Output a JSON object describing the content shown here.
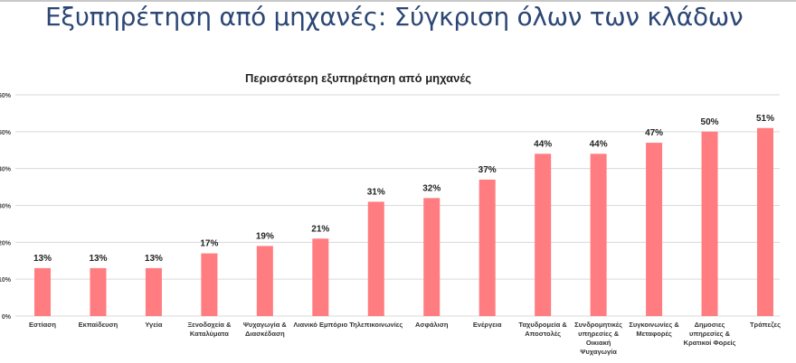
{
  "slide_title": "Εξυπηρέτηση από μηχανές: Σύγκριση όλων των κλάδων",
  "chart_data": {
    "type": "bar",
    "title": "Περισσότερη εξυπηρέτηση από μηχανές",
    "xlabel": "",
    "ylabel": "",
    "ylim": [
      0,
      60
    ],
    "yticks": [
      0,
      10,
      20,
      30,
      40,
      50,
      60
    ],
    "ytick_labels": [
      "0%",
      "10%",
      "20%",
      "30%",
      "40%",
      "50%",
      "60%"
    ],
    "grid": true,
    "bar_color": "#ff7c80",
    "categories": [
      [
        "Εστίαση"
      ],
      [
        "Εκπαίδευση"
      ],
      [
        "Υγεία"
      ],
      [
        "Ξενοδοχεία &",
        "Καταλύματα"
      ],
      [
        "Ψυχαγωγία &",
        "Διασκέδαση"
      ],
      [
        "Λιανικό Εμπόριο"
      ],
      [
        "Τηλεπικοινωνίες"
      ],
      [
        "Ασφάλιση"
      ],
      [
        "Ενέργεια"
      ],
      [
        "Ταχυδρομεία &",
        "Αποστολές"
      ],
      [
        "Συνδρομητικές",
        "υπηρεσίες &",
        "Οικιακή",
        "Ψυχαγωγία"
      ],
      [
        "Συγκοινωνίες &",
        "Μεταφορές"
      ],
      [
        "Δημοσιες",
        "υπηρεσίες &",
        "Κρατικοί Φορείς"
      ],
      [
        "Τράπεζες"
      ]
    ],
    "values": [
      13,
      13,
      13,
      17,
      19,
      21,
      31,
      32,
      37,
      44,
      44,
      47,
      50,
      51
    ],
    "data_labels": [
      "13%",
      "13%",
      "13%",
      "17%",
      "19%",
      "21%",
      "31%",
      "32%",
      "37%",
      "44%",
      "44%",
      "47%",
      "50%",
      "51%"
    ]
  }
}
